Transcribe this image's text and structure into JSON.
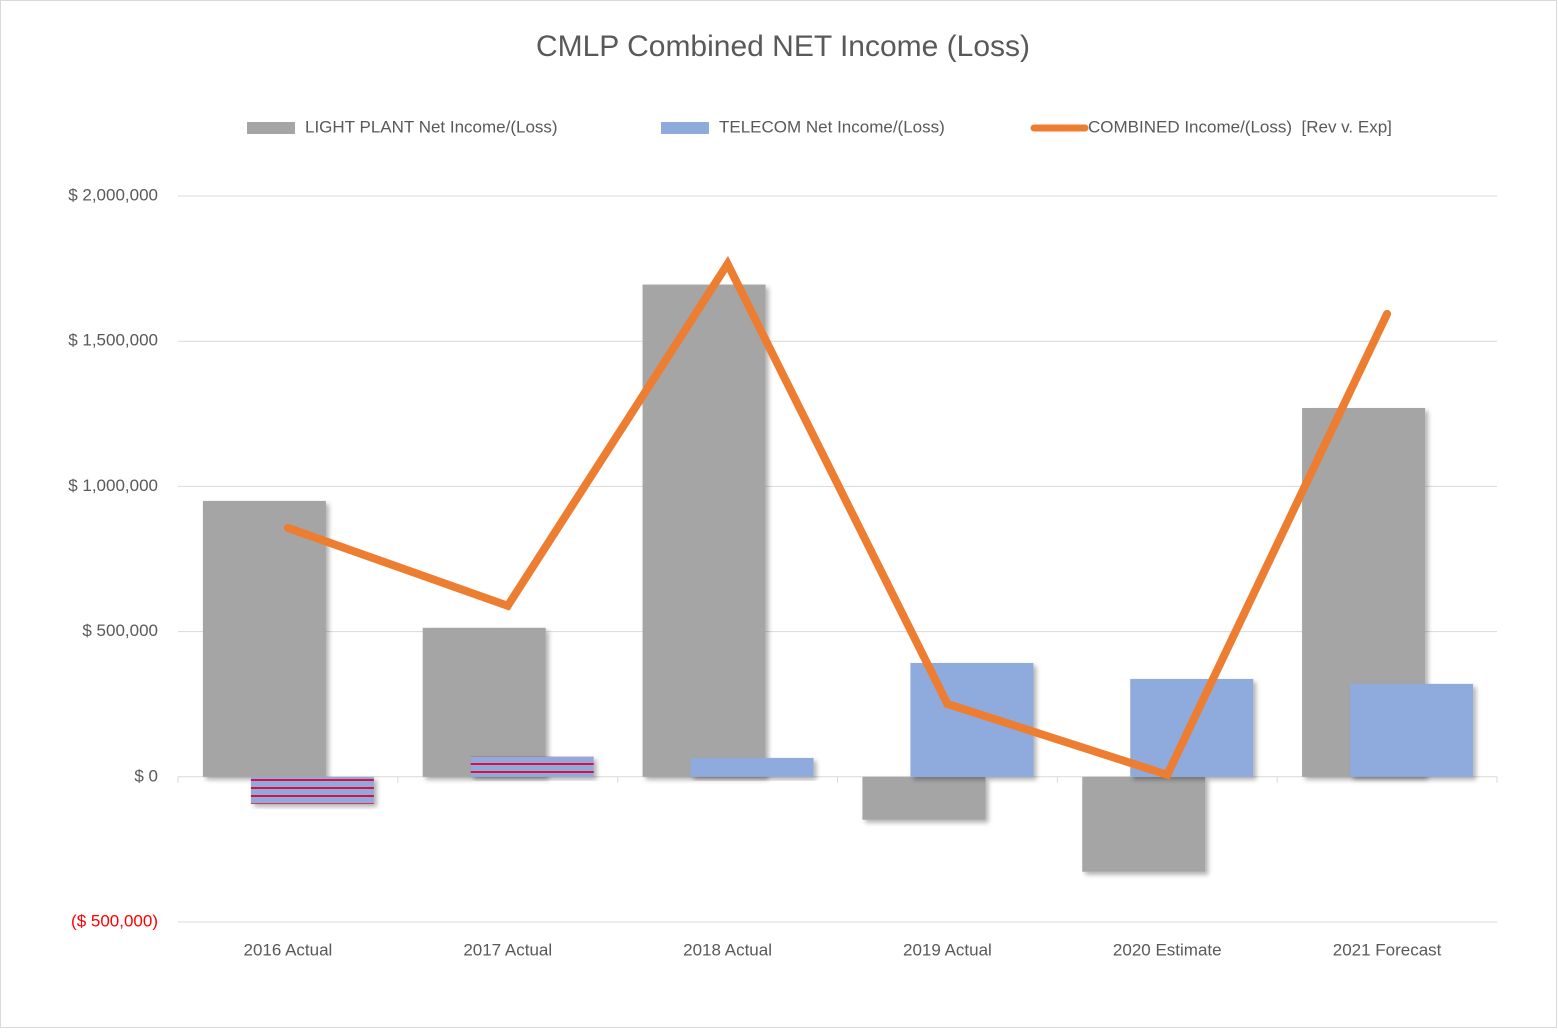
{
  "chart_data": {
    "type": "bar-line",
    "title": "CMLP Combined NET Income (Loss)",
    "categories": [
      "2016 Actual",
      "2017 Actual",
      "2018 Actual",
      "2019 Actual",
      "2020 Estimate",
      "2021 Forecast"
    ],
    "series": [
      {
        "name": "LIGHT PLANT Net Income/(Loss)",
        "type": "bar",
        "color": "#a5a5a5",
        "values": [
          950000,
          513000,
          1695000,
          -148000,
          -327000,
          1270000
        ]
      },
      {
        "name": "TELECOM Net Income/(Loss)",
        "type": "bar",
        "color": "#8faadc",
        "hatch_color": "#e0103c",
        "hatched": [
          true,
          true,
          false,
          false,
          false,
          false
        ],
        "values": [
          -93000,
          69000,
          65000,
          392000,
          337000,
          320000
        ]
      },
      {
        "name": "COMBINED Income/(Loss)  [Rev v. Exp]",
        "type": "line",
        "color": "#ed7d31",
        "values": [
          857000,
          589000,
          1766000,
          251000,
          7000,
          1594000
        ]
      }
    ],
    "ylim": [
      -500000,
      2000000
    ],
    "yticks": [
      {
        "value": -500000,
        "label": "($ 500,000)"
      },
      {
        "value": 0,
        "label": "$ 0"
      },
      {
        "value": 500000,
        "label": "$ 500,000"
      },
      {
        "value": 1000000,
        "label": "$ 1,000,000"
      },
      {
        "value": 1500000,
        "label": "$ 1,500,000"
      },
      {
        "value": 2000000,
        "label": "$ 2,000,000"
      }
    ],
    "negative_tick_color": "#ff0000",
    "grid": true,
    "legend": "top"
  }
}
